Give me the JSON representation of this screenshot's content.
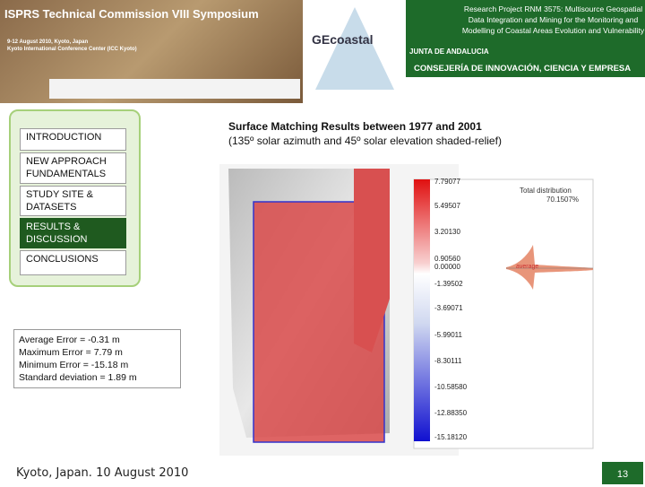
{
  "header": {
    "banner_title": "ISPRS Technical Commission VIII Symposium",
    "banner_date": "9-12 August 2010, Kyoto, Japan",
    "banner_venue": "Kyoto International Conference Center (ICC Kyoto)",
    "logo": "GEcoastal",
    "project": "Research Project RNM 3575: Multisource Geospatial Data Integration and Mining for the Monitoring and Modelling of Coastal Areas Evolution and Vulnerability",
    "junta": "JUNTA DE ANDALUCIA",
    "consejeria": "CONSEJERÍA DE INNOVACIÓN, CIENCIA Y EMPRESA"
  },
  "menu": {
    "items": [
      "INTRODUCTION",
      "NEW APPROACH FUNDAMENTALS",
      "STUDY SITE & DATASETS",
      "RESULTS & DISCUSSION",
      "CONCLUSIONS"
    ]
  },
  "title": [
    "Surface Matching Results between 1977 and 2001",
    "(135º solar azimuth and 45º solar elevation shaded-relief)"
  ],
  "stats": [
    "Average Error = -0.31 m",
    "Maximum Error = 7.79 m",
    "Minimum Error = -15.18 m",
    "Standard deviation = 1.89 m"
  ],
  "figure": {
    "colorbar": [
      "7.79077",
      "5.49507",
      "3.20130",
      "0.90560",
      "0.00000",
      "-1.39502",
      "-3.69071",
      "-5.99011",
      "-8.30111",
      "-10.58580",
      "-12.88350",
      "-15.18120"
    ],
    "distribution": "Total distribution",
    "distribution_value": "70.1507%",
    "average": "average"
  },
  "footer": {
    "place_date": "Kyoto, Japan. 10 August 2010",
    "page": "13"
  }
}
